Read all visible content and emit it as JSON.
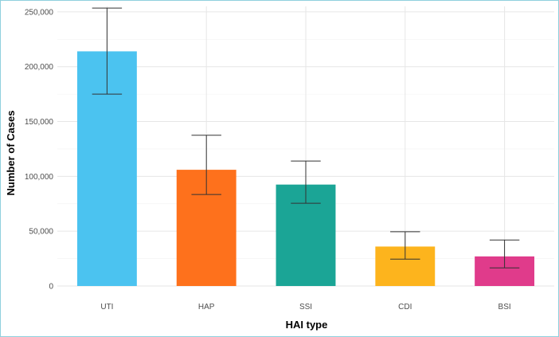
{
  "chart_data": {
    "type": "bar",
    "title": "",
    "xlabel": "HAI type",
    "ylabel": "Number of Cases",
    "categories": [
      "UTI",
      "HAP",
      "SSI",
      "CDI",
      "BSI"
    ],
    "values": [
      214000,
      106000,
      92500,
      36000,
      27000
    ],
    "error_low": [
      175000,
      83500,
      75500,
      24500,
      16500
    ],
    "error_high": [
      253500,
      137500,
      114000,
      49500,
      42000
    ],
    "colors": [
      "#4bc3f0",
      "#fe711c",
      "#1ba596",
      "#fdb41d",
      "#e03b8b"
    ],
    "ylim": [
      0,
      255000
    ],
    "yticks": [
      0,
      50000,
      100000,
      150000,
      200000,
      250000
    ],
    "ytick_labels": [
      "0",
      "50,000",
      "100,000",
      "150,000",
      "200,000",
      "250,000"
    ],
    "grid": true,
    "legend": "none"
  }
}
